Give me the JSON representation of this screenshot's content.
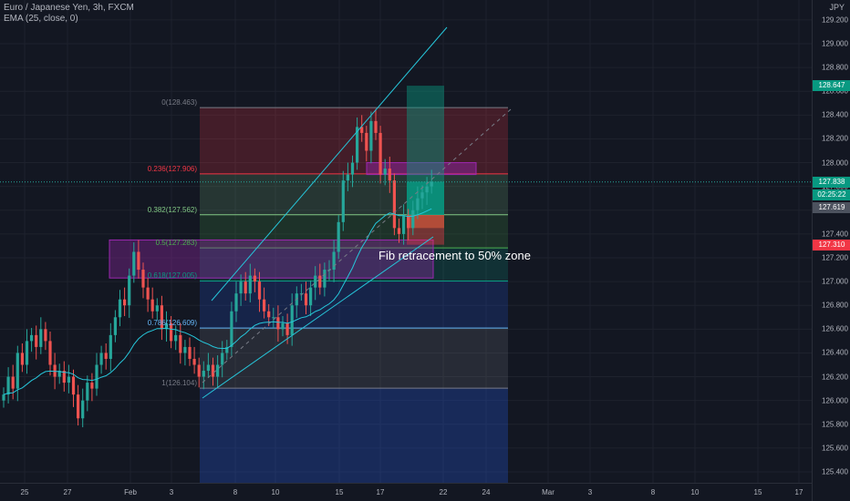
{
  "header": {
    "symbol_title": "Euro / Japanese Yen, 3h, FXCM",
    "indicator": "EMA (25, close, 0)",
    "currency": "JPY"
  },
  "price_axis": {
    "ticks": [
      "129.200",
      "129.000",
      "128.800",
      "128.647",
      "128.400",
      "128.200",
      "128.000",
      "127.838",
      "02:25:22",
      "127.619",
      "127.400",
      "127.310",
      "127.200",
      "127.000",
      "126.800",
      "126.600",
      "126.400",
      "126.200",
      "126.000",
      "125.800",
      "125.600",
      "125.400"
    ],
    "tick_values": [
      129.2,
      129.0,
      128.8,
      128.6,
      128.4,
      128.2,
      128.0,
      127.8,
      127.6,
      127.4,
      127.2,
      127.0,
      126.8,
      126.6,
      126.4,
      126.2,
      126.0,
      125.8,
      125.6,
      125.4
    ],
    "tick_labels": [
      "129.200",
      "129.000",
      "128.800",
      "128.600",
      "128.400",
      "128.200",
      "128.000",
      "127.800",
      "127.600",
      "127.400",
      "127.200",
      "127.000",
      "126.800",
      "126.600",
      "126.400",
      "126.200",
      "126.000",
      "125.800",
      "125.600",
      "125.400"
    ],
    "badges": [
      {
        "label": "128.647",
        "value": 128.647,
        "color": "#089981"
      },
      {
        "label": "127.838",
        "value": 127.838,
        "color": "#089981"
      },
      {
        "label": "02:25:22",
        "value": 127.73,
        "color": "#089981"
      },
      {
        "label": "127.619",
        "value": 127.619,
        "color": "#4c525e"
      },
      {
        "label": "127.310",
        "value": 127.31,
        "color": "#f23645"
      }
    ]
  },
  "time_axis": {
    "labels": [
      "25",
      "27",
      "Feb",
      "3",
      "8",
      "10",
      "15",
      "17",
      "22",
      "24",
      "Mar",
      "3",
      "8",
      "10",
      "15",
      "17"
    ]
  },
  "fib_levels": [
    {
      "label": "0(128.463)",
      "value": 128.463,
      "color": "#787b86"
    },
    {
      "label": "0.236(127.906)",
      "value": 127.906,
      "color": "#f23645"
    },
    {
      "label": "0.382(127.562)",
      "value": 127.562,
      "color": "#81c784"
    },
    {
      "label": "0.5(127.283)",
      "value": 127.283,
      "color": "#4caf50"
    },
    {
      "label": "0.618(127.005)",
      "value": 127.005,
      "color": "#089981"
    },
    {
      "label": "0.786(126.609)",
      "value": 126.609,
      "color": "#64b5f6"
    },
    {
      "label": "1(126.104)",
      "value": 126.104,
      "color": "#787b86"
    }
  ],
  "annotation": "Fib retracement to 50% zone",
  "colors": {
    "background": "#131722",
    "up": "#26a69a",
    "down": "#ef5350",
    "ema": "#26c6da",
    "trendline": "#26c6da"
  },
  "chart_data": {
    "type": "candlestick",
    "series_name": "EURJPY 3h",
    "indicator_name": "EMA 25",
    "ylim": [
      125.3,
      129.4
    ],
    "x_labels": [
      "25",
      "27",
      "Feb",
      "3",
      "8",
      "10",
      "15",
      "17",
      "22",
      "24",
      "Mar",
      "3",
      "8",
      "10",
      "15",
      "17"
    ],
    "last_price": 127.838,
    "close_series": [
      126.05,
      126.2,
      126.1,
      126.4,
      126.3,
      126.5,
      126.55,
      126.45,
      126.6,
      126.5,
      126.3,
      126.2,
      126.25,
      126.15,
      126.2,
      126.05,
      125.85,
      126.0,
      126.15,
      126.1,
      126.3,
      126.4,
      126.35,
      126.55,
      126.7,
      126.85,
      126.8,
      127.05,
      127.25,
      127.1,
      126.95,
      126.85,
      126.75,
      126.8,
      126.6,
      126.65,
      126.5,
      126.55,
      126.4,
      126.45,
      126.35,
      126.3,
      126.2,
      126.25,
      126.3,
      126.2,
      126.3,
      126.4,
      126.45,
      126.75,
      126.9,
      127.0,
      126.9,
      127.05,
      127.0,
      126.85,
      126.75,
      126.7,
      126.7,
      126.6,
      126.65,
      126.55,
      126.8,
      126.9,
      126.9,
      126.8,
      126.95,
      127.05,
      126.95,
      127.1,
      127.1,
      127.25,
      127.5,
      127.85,
      127.9,
      128.0,
      128.3,
      128.25,
      128.1,
      128.35,
      128.25,
      127.9,
      127.95,
      127.85,
      127.45,
      127.4,
      127.55,
      127.45,
      127.6,
      127.7,
      127.75,
      127.8,
      127.84
    ],
    "drawings": {
      "upper_trendline": [
        [
          232,
          330
        ],
        [
          490,
          30
        ]
      ],
      "lower_trendline": [
        [
          222,
          437
        ],
        [
          475,
          260
        ]
      ],
      "position_box": {
        "entry": 127.56,
        "target": 128.647,
        "stop": 127.31
      }
    }
  }
}
